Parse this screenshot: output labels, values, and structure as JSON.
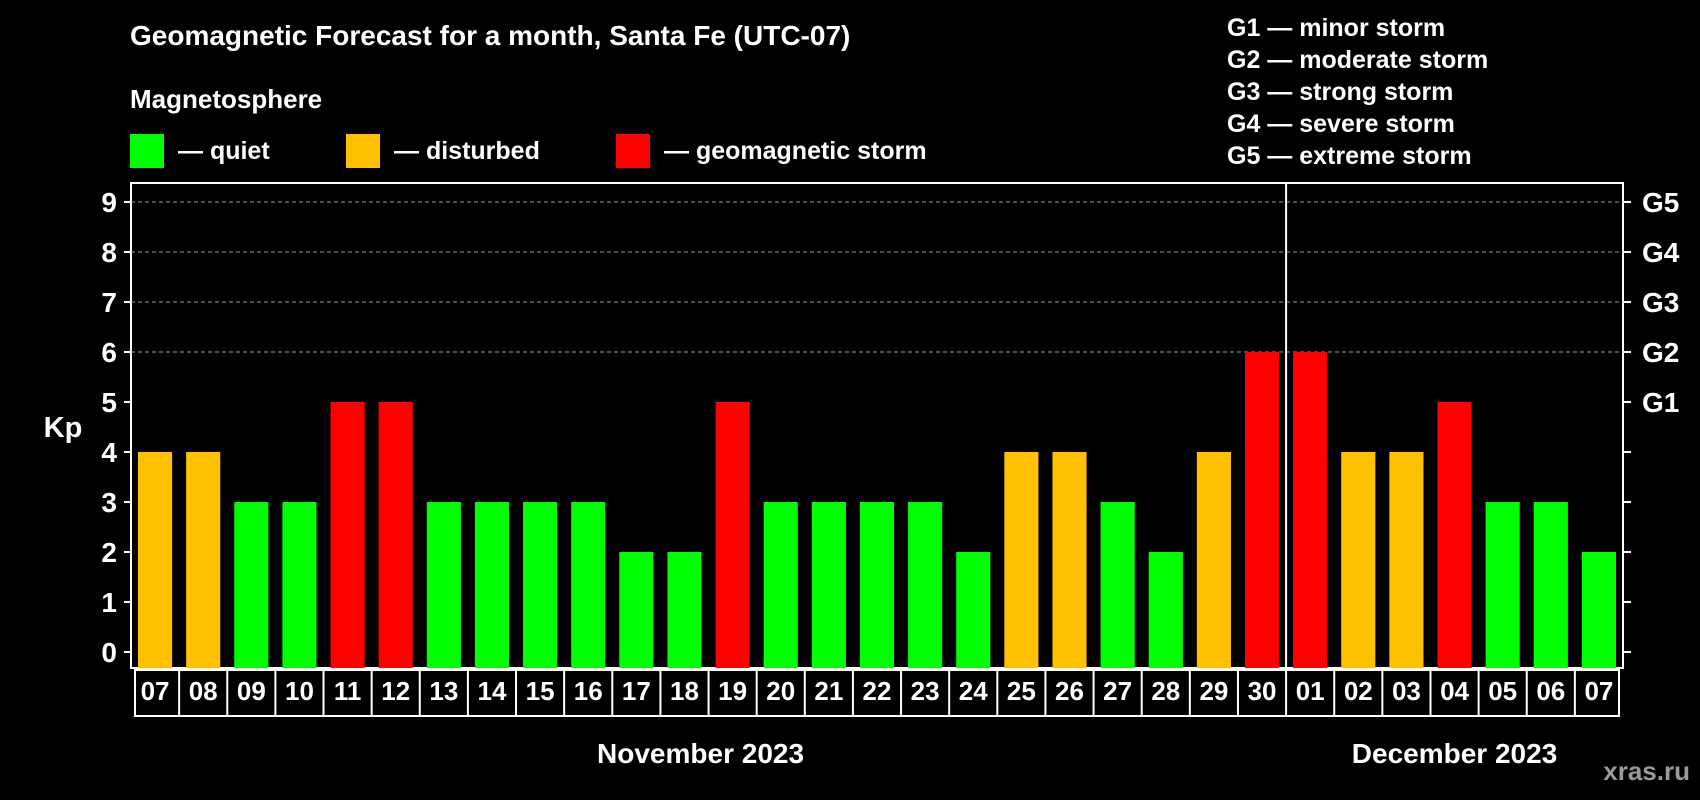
{
  "title": "Geomagnetic Forecast for a month, Santa Fe (UTC-07)",
  "magnetosphere": {
    "label": "Magnetosphere",
    "items": [
      {
        "label": "— quiet",
        "color": "#00ff00"
      },
      {
        "label": "— disturbed",
        "color": "#ffc000"
      },
      {
        "label": "— geomagnetic storm",
        "color": "#ff0000"
      }
    ]
  },
  "storm_scale": [
    "G1 — minor storm",
    "G2 — moderate storm",
    "G3 — strong storm",
    "G4 — severe storm",
    "G5 — extreme storm"
  ],
  "watermark": "xras.ru",
  "chart_data": {
    "type": "bar",
    "ylabel": "Kp",
    "ylim": [
      0,
      9
    ],
    "yticks": [
      "0",
      "1",
      "2",
      "3",
      "4",
      "5",
      "6",
      "7",
      "8",
      "9"
    ],
    "right_axis_labels": [
      {
        "kp": 5,
        "label": "G1"
      },
      {
        "kp": 6,
        "label": "G2"
      },
      {
        "kp": 7,
        "label": "G3"
      },
      {
        "kp": 8,
        "label": "G4"
      },
      {
        "kp": 9,
        "label": "G5"
      }
    ],
    "categories": [
      "07",
      "08",
      "09",
      "10",
      "11",
      "12",
      "13",
      "14",
      "15",
      "16",
      "17",
      "18",
      "19",
      "20",
      "21",
      "22",
      "23",
      "24",
      "25",
      "26",
      "27",
      "28",
      "29",
      "30",
      "01",
      "02",
      "03",
      "04",
      "05",
      "06",
      "07"
    ],
    "values": [
      4,
      4,
      3,
      3,
      5,
      5,
      3,
      3,
      3,
      3,
      2,
      2,
      5,
      3,
      3,
      3,
      3,
      2,
      4,
      4,
      3,
      2,
      4,
      6,
      6,
      4,
      4,
      5,
      3,
      3,
      2
    ],
    "color_rule": {
      "quiet_max": 3,
      "disturbed": 4,
      "storm_min": 5
    },
    "colors": {
      "quiet": "#00ff00",
      "disturbed": "#ffc000",
      "storm": "#ff0000"
    },
    "grid_levels": [
      6,
      7,
      8,
      9
    ],
    "month_divider_after_index": 23,
    "months": [
      {
        "label": "November 2023",
        "start_index": 0,
        "end_index": 23
      },
      {
        "label": "December 2023",
        "start_index": 24,
        "end_index": 30
      }
    ]
  }
}
